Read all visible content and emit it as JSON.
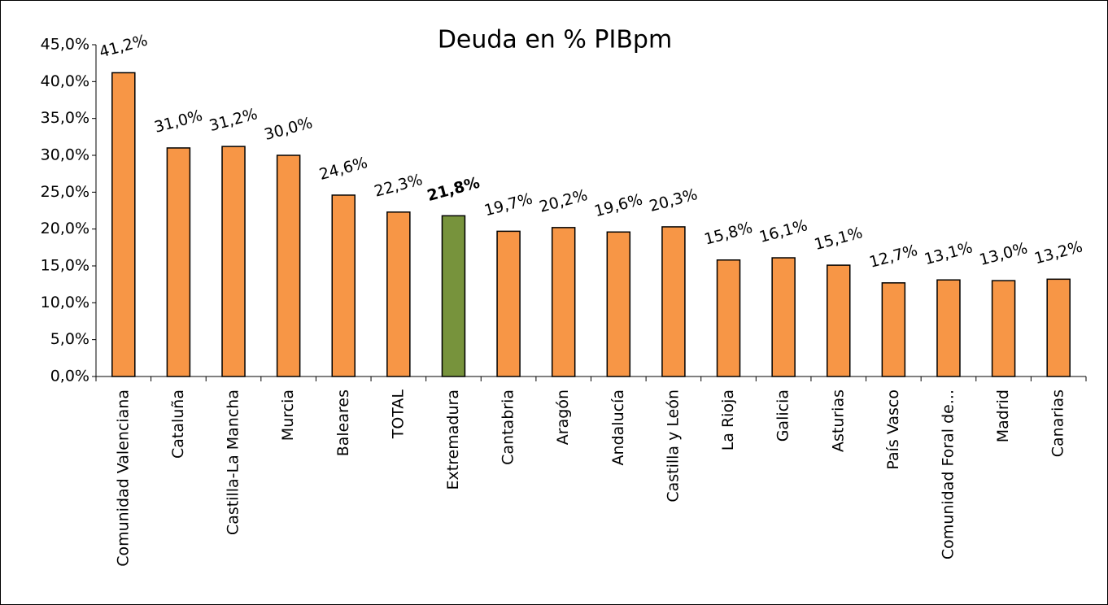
{
  "chart_data": {
    "type": "bar",
    "title": "Deuda en % PIBpm",
    "categories": [
      "Comunidad Valenciana",
      "Cataluña",
      "Castilla-La Mancha",
      "Murcia",
      "Baleares",
      "TOTAL",
      "Extremadura",
      "Cantabria",
      "Aragón",
      "Andalucía",
      "Castilla y León",
      "La Rioja",
      "Galicia",
      "Asturias",
      "País Vasco",
      "Comunidad Foral de...",
      "Madrid",
      "Canarias"
    ],
    "values": [
      41.2,
      31.0,
      31.2,
      30.0,
      24.6,
      22.3,
      21.8,
      19.7,
      20.2,
      19.6,
      20.3,
      15.8,
      16.1,
      15.1,
      12.7,
      13.1,
      13.0,
      13.2
    ],
    "value_labels": [
      "41,2%",
      "31,0%",
      "31,2%",
      "30,0%",
      "24,6%",
      "22,3%",
      "21,8%",
      "19,7%",
      "20,2%",
      "19,6%",
      "20,3%",
      "15,8%",
      "16,1%",
      "15,1%",
      "12,7%",
      "13,1%",
      "13,0%",
      "13,2%"
    ],
    "color": "#f79646",
    "colors": [
      "#f79646",
      "#f79646",
      "#f79646",
      "#f79646",
      "#f79646",
      "#f79646",
      "#77933c",
      "#f79646",
      "#f79646",
      "#f79646",
      "#f79646",
      "#f79646",
      "#f79646",
      "#f79646",
      "#f79646",
      "#f79646",
      "#f79646",
      "#f79646"
    ],
    "ylim": [
      0,
      45
    ],
    "yticks": [
      {
        "value": 0,
        "label": "0,0%"
      },
      {
        "value": 5,
        "label": "5,0%"
      },
      {
        "value": 10,
        "label": "10,0%"
      },
      {
        "value": 15,
        "label": "15,0%"
      },
      {
        "value": 20,
        "label": "20,0%"
      },
      {
        "value": 25,
        "label": "25,0%"
      },
      {
        "value": 30,
        "label": "30,0%"
      },
      {
        "value": 35,
        "label": "35,0%"
      },
      {
        "value": 40,
        "label": "40,0%"
      },
      {
        "value": 45,
        "label": "45,0%"
      }
    ],
    "grid": false
  }
}
